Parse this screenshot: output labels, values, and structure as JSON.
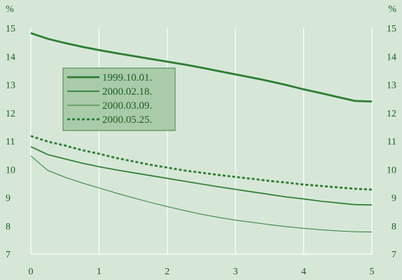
{
  "colors": {
    "background": "#d6e7d8",
    "plot_background": "#d6e7d8",
    "grid": "#ffffff",
    "series": "#2e7d32",
    "legend_fill": "#a9cbaa",
    "legend_border": "#4a7d4c",
    "text": "#1b5e20"
  },
  "chart_data": {
    "type": "line",
    "title": "",
    "xlabel": "",
    "ylabel": "",
    "y_unit_left": "%",
    "y_unit_right": "%",
    "xlim": [
      0,
      5
    ],
    "ylim": [
      7,
      15
    ],
    "x_ticks": [
      "0",
      "1",
      "2",
      "3",
      "4",
      "5"
    ],
    "y_ticks": [
      "7",
      "8",
      "9",
      "10",
      "11",
      "12",
      "13",
      "14",
      "15"
    ],
    "grid": "vertical",
    "legend_position": "upper-left",
    "series": [
      {
        "name": "1999.10.01.",
        "style": "solid",
        "width": "thick",
        "x": [
          0,
          0.25,
          0.5,
          0.75,
          1,
          1.25,
          1.5,
          1.75,
          2,
          2.25,
          2.5,
          2.75,
          3,
          3.25,
          3.5,
          3.75,
          4,
          4.25,
          4.5,
          4.75,
          5
        ],
        "values": [
          14.82,
          14.62,
          14.47,
          14.34,
          14.22,
          14.11,
          14.01,
          13.91,
          13.81,
          13.71,
          13.6,
          13.48,
          13.36,
          13.24,
          13.12,
          12.98,
          12.83,
          12.7,
          12.56,
          12.42,
          12.4
        ]
      },
      {
        "name": "2000.02.18.",
        "style": "solid",
        "width": "medium",
        "x": [
          0,
          0.25,
          0.5,
          0.75,
          1,
          1.25,
          1.5,
          1.75,
          2,
          2.25,
          2.5,
          2.75,
          3,
          3.25,
          3.5,
          3.75,
          4,
          4.25,
          4.5,
          4.75,
          5
        ],
        "values": [
          10.8,
          10.52,
          10.37,
          10.22,
          10.09,
          9.98,
          9.88,
          9.78,
          9.68,
          9.58,
          9.48,
          9.38,
          9.29,
          9.2,
          9.11,
          9.02,
          8.95,
          8.87,
          8.81,
          8.75,
          8.74
        ]
      },
      {
        "name": "2000.03.09.",
        "style": "solid",
        "width": "thin",
        "x": [
          0,
          0.25,
          0.5,
          0.75,
          1,
          1.25,
          1.5,
          1.75,
          2,
          2.25,
          2.5,
          2.75,
          3,
          3.25,
          3.5,
          3.75,
          4,
          4.25,
          4.5,
          4.75,
          5
        ],
        "values": [
          10.47,
          9.96,
          9.72,
          9.52,
          9.34,
          9.16,
          8.99,
          8.83,
          8.68,
          8.54,
          8.41,
          8.3,
          8.2,
          8.12,
          8.04,
          7.97,
          7.91,
          7.86,
          7.82,
          7.79,
          7.78
        ]
      },
      {
        "name": "2000.05.25.",
        "style": "dashed",
        "width": "thick",
        "x": [
          0,
          0.25,
          0.5,
          0.75,
          1,
          1.25,
          1.5,
          1.75,
          2,
          2.25,
          2.5,
          2.75,
          3,
          3.25,
          3.5,
          3.75,
          4,
          4.25,
          4.5,
          4.75,
          5
        ],
        "values": [
          11.18,
          10.98,
          10.84,
          10.68,
          10.55,
          10.4,
          10.28,
          10.16,
          10.06,
          9.96,
          9.88,
          9.8,
          9.73,
          9.66,
          9.59,
          9.53,
          9.46,
          9.41,
          9.36,
          9.31,
          9.28
        ]
      }
    ]
  }
}
